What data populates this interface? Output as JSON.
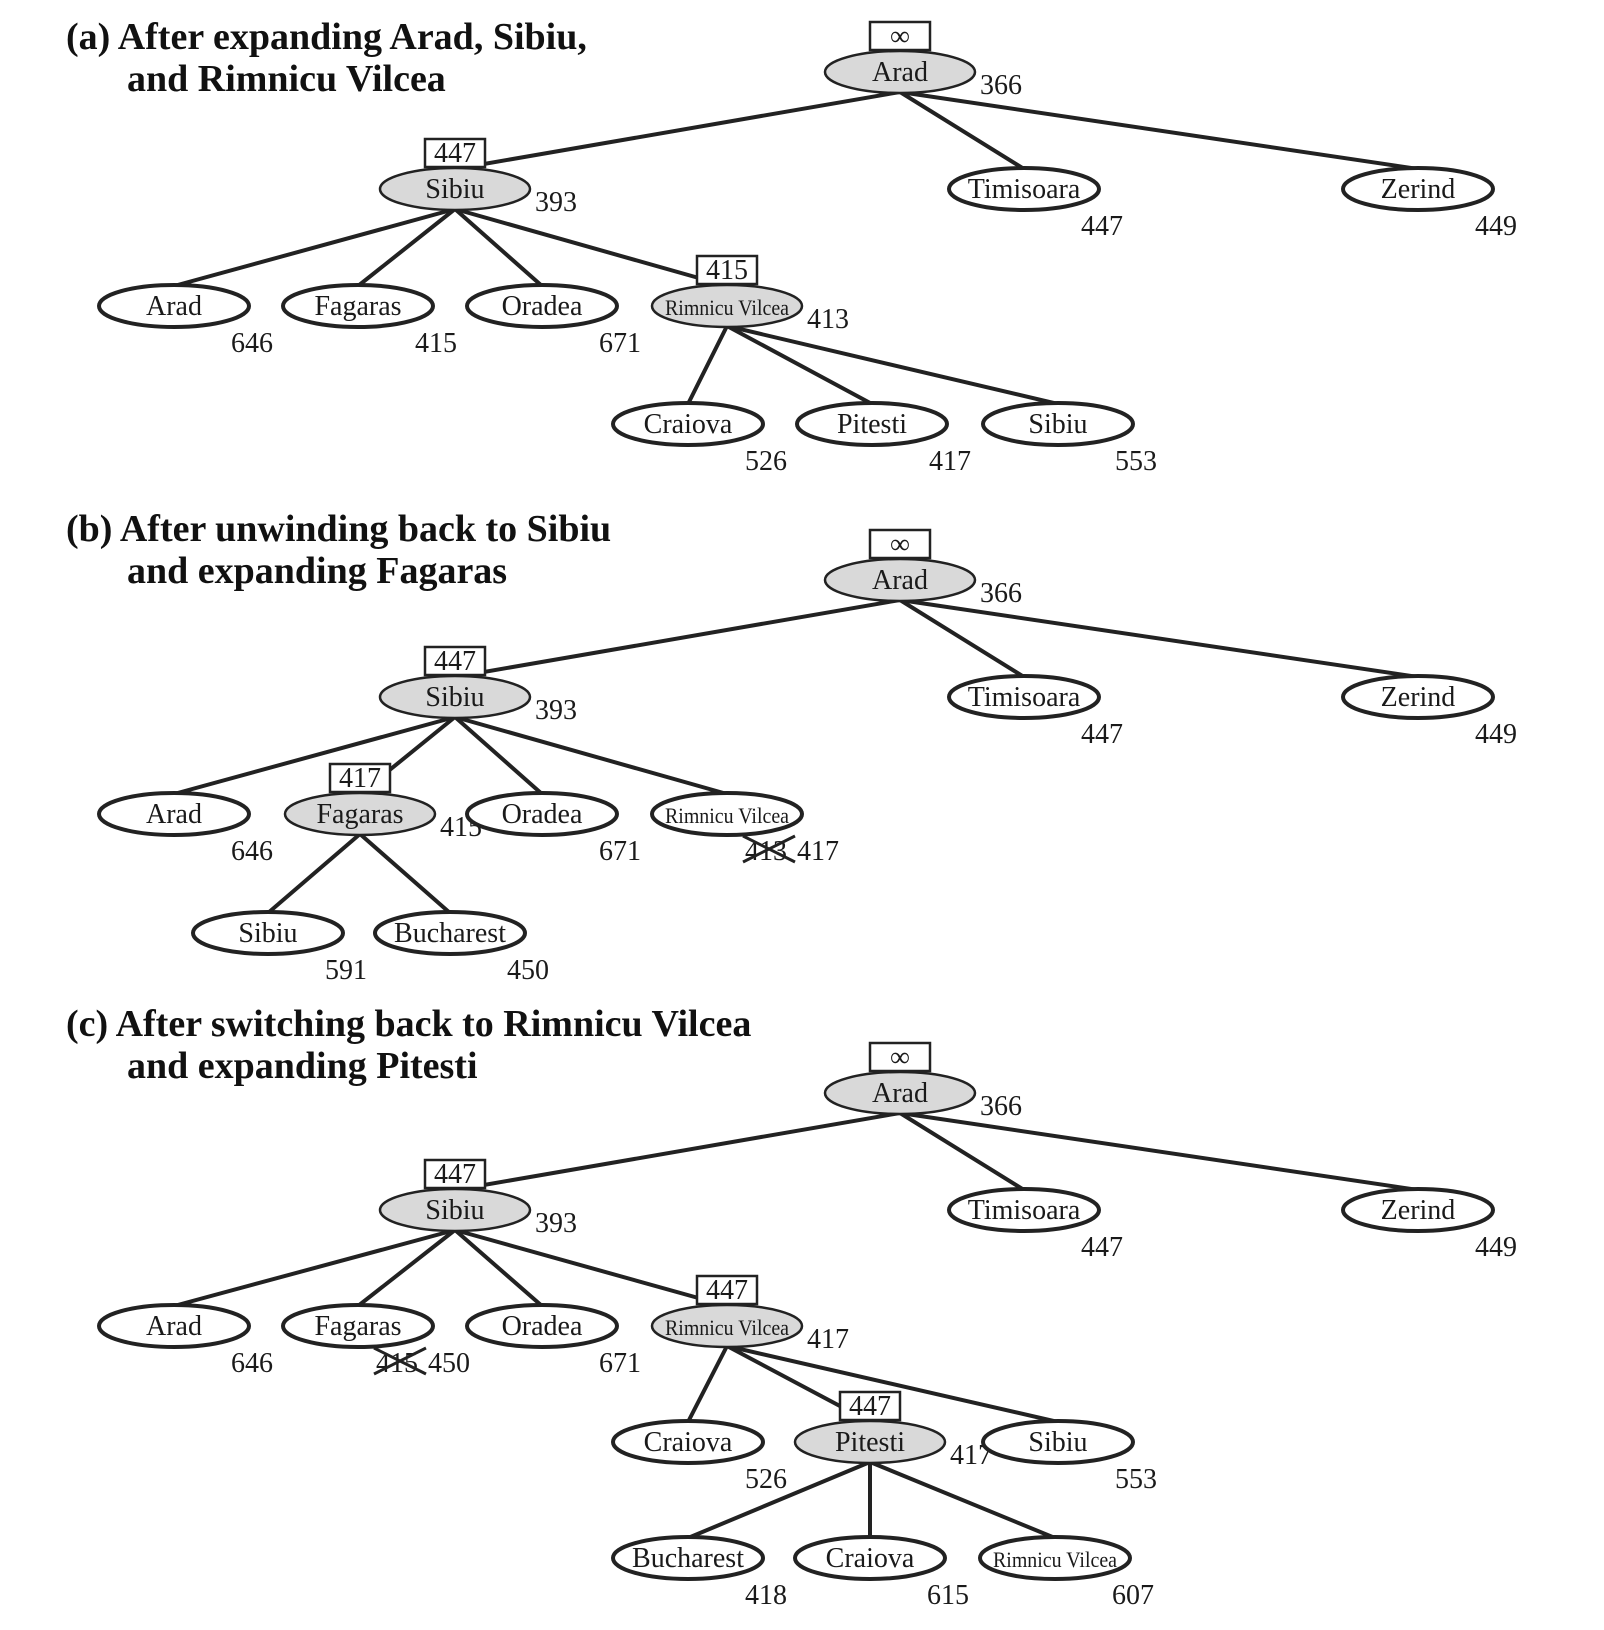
{
  "colors": {
    "line": "#222222",
    "expanded_fill": "#d9d9d9",
    "open_fill": "#ffffff",
    "text": "#1a1a1a"
  },
  "panels": [
    {
      "id": "a",
      "caption": [
        "(a) After expanding Arad, Sibiu,",
        "and Rimnicu Vilcea"
      ],
      "nodes": [
        {
          "id": "arad",
          "label": "Arad",
          "expanded": true,
          "value": "366",
          "bound": "∞"
        },
        {
          "id": "sibiu",
          "label": "Sibiu",
          "expanded": true,
          "value": "393",
          "bound": "447"
        },
        {
          "id": "timisoara",
          "label": "Timisoara",
          "value": "447"
        },
        {
          "id": "zerind",
          "label": "Zerind",
          "value": "449"
        },
        {
          "id": "arad2",
          "label": "Arad",
          "value": "646"
        },
        {
          "id": "fagaras",
          "label": "Fagaras",
          "value": "415"
        },
        {
          "id": "oradea",
          "label": "Oradea",
          "value": "671"
        },
        {
          "id": "rimnicu",
          "label": "Rimnicu Vilcea",
          "expanded": true,
          "value": "413",
          "bound": "415",
          "small": true
        },
        {
          "id": "craiova",
          "label": "Craiova",
          "value": "526"
        },
        {
          "id": "pitesti",
          "label": "Pitesti",
          "value": "417"
        },
        {
          "id": "sibiu2",
          "label": "Sibiu",
          "value": "553"
        }
      ],
      "edges": [
        [
          "arad",
          "sibiu"
        ],
        [
          "arad",
          "timisoara"
        ],
        [
          "arad",
          "zerind"
        ],
        [
          "sibiu",
          "arad2"
        ],
        [
          "sibiu",
          "fagaras"
        ],
        [
          "sibiu",
          "oradea"
        ],
        [
          "sibiu",
          "rimnicu"
        ],
        [
          "rimnicu",
          "craiova"
        ],
        [
          "rimnicu",
          "pitesti"
        ],
        [
          "rimnicu",
          "sibiu2"
        ]
      ]
    },
    {
      "id": "b",
      "caption": [
        "(b) After unwinding back to Sibiu",
        "and expanding Fagaras"
      ],
      "nodes": [
        {
          "id": "arad",
          "label": "Arad",
          "expanded": true,
          "value": "366",
          "bound": "∞"
        },
        {
          "id": "sibiu",
          "label": "Sibiu",
          "expanded": true,
          "value": "393",
          "bound": "447"
        },
        {
          "id": "timisoara",
          "label": "Timisoara",
          "value": "447"
        },
        {
          "id": "zerind",
          "label": "Zerind",
          "value": "449"
        },
        {
          "id": "arad2",
          "label": "Arad",
          "value": "646"
        },
        {
          "id": "fagaras",
          "label": "Fagaras",
          "expanded": true,
          "value": "415",
          "bound": "417"
        },
        {
          "id": "oradea",
          "label": "Oradea",
          "value": "671"
        },
        {
          "id": "rimnicu",
          "label": "Rimnicu Vilcea",
          "value": "417",
          "old_value": "413",
          "small": true
        },
        {
          "id": "sibiu2",
          "label": "Sibiu",
          "value": "591"
        },
        {
          "id": "bucharest",
          "label": "Bucharest",
          "value": "450"
        }
      ],
      "edges": [
        [
          "arad",
          "sibiu"
        ],
        [
          "arad",
          "timisoara"
        ],
        [
          "arad",
          "zerind"
        ],
        [
          "sibiu",
          "arad2"
        ],
        [
          "sibiu",
          "fagaras"
        ],
        [
          "sibiu",
          "oradea"
        ],
        [
          "sibiu",
          "rimnicu"
        ],
        [
          "fagaras",
          "sibiu2"
        ],
        [
          "fagaras",
          "bucharest"
        ]
      ]
    },
    {
      "id": "c",
      "caption": [
        "(c) After switching back to Rimnicu Vilcea",
        "and expanding Pitesti"
      ],
      "nodes": [
        {
          "id": "arad",
          "label": "Arad",
          "expanded": true,
          "value": "366",
          "bound": "∞"
        },
        {
          "id": "sibiu",
          "label": "Sibiu",
          "expanded": true,
          "value": "393",
          "bound": "447"
        },
        {
          "id": "timisoara",
          "label": "Timisoara",
          "value": "447"
        },
        {
          "id": "zerind",
          "label": "Zerind",
          "value": "449"
        },
        {
          "id": "arad2",
          "label": "Arad",
          "value": "646"
        },
        {
          "id": "fagaras",
          "label": "Fagaras",
          "value": "450",
          "old_value": "415"
        },
        {
          "id": "oradea",
          "label": "Oradea",
          "value": "671"
        },
        {
          "id": "rimnicu",
          "label": "Rimnicu Vilcea",
          "expanded": true,
          "value": "417",
          "bound": "447",
          "small": true
        },
        {
          "id": "craiova",
          "label": "Craiova",
          "value": "526"
        },
        {
          "id": "pitesti",
          "label": "Pitesti",
          "expanded": true,
          "value": "417",
          "bound": "447"
        },
        {
          "id": "sibiu2",
          "label": "Sibiu",
          "value": "553"
        },
        {
          "id": "bucharest",
          "label": "Bucharest",
          "value": "418"
        },
        {
          "id": "craiova2",
          "label": "Craiova",
          "value": "615"
        },
        {
          "id": "rimnicu2",
          "label": "Rimnicu Vilcea",
          "value": "607",
          "small": true
        }
      ],
      "edges": [
        [
          "arad",
          "sibiu"
        ],
        [
          "arad",
          "timisoara"
        ],
        [
          "arad",
          "zerind"
        ],
        [
          "sibiu",
          "arad2"
        ],
        [
          "sibiu",
          "fagaras"
        ],
        [
          "sibiu",
          "oradea"
        ],
        [
          "sibiu",
          "rimnicu"
        ],
        [
          "rimnicu",
          "craiova"
        ],
        [
          "rimnicu",
          "pitesti"
        ],
        [
          "rimnicu",
          "sibiu2"
        ],
        [
          "pitesti",
          "bucharest"
        ],
        [
          "pitesti",
          "craiova2"
        ],
        [
          "pitesti",
          "rimnicu2"
        ]
      ]
    }
  ]
}
